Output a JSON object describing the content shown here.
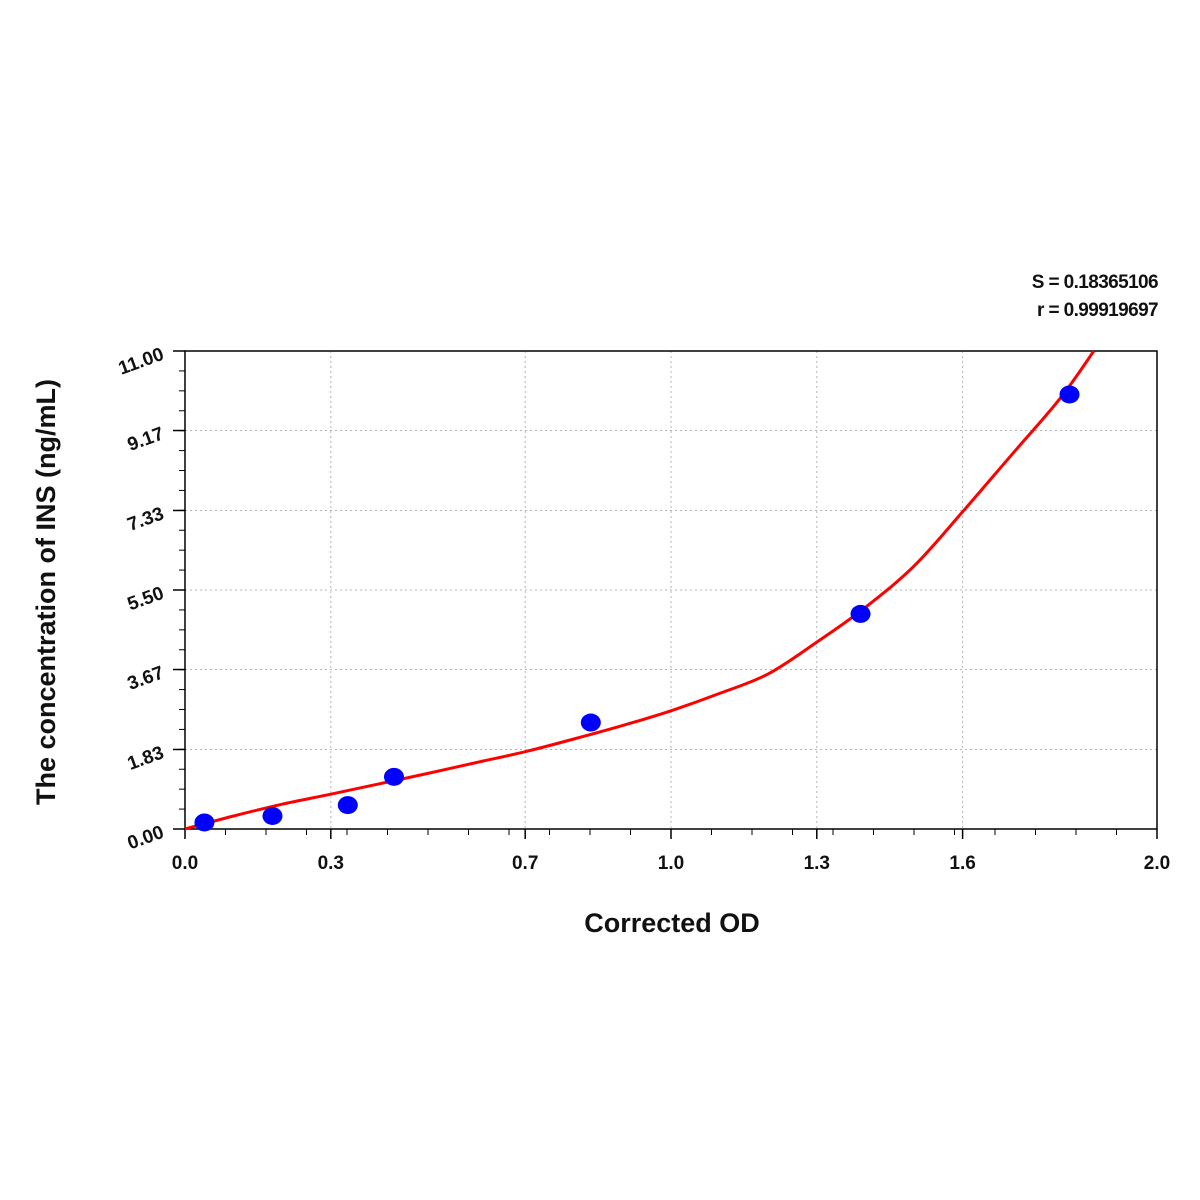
{
  "stats": {
    "s_text": "S = 0.18365106",
    "r_text": "r = 0.99919697"
  },
  "colors": {
    "curve": "#ff0000",
    "points": "#0000ff",
    "grid": "#b4b4b4",
    "axis": "#000000"
  },
  "chart_data": {
    "type": "scatter",
    "title": "",
    "xlabel": "Corrected OD",
    "ylabel": "The concentration of INS (ng/mL)",
    "xlim": [
      0,
      2.0
    ],
    "ylim": [
      0,
      11.0
    ],
    "x_ticks": [
      0.0,
      0.3,
      0.7,
      1.0,
      1.3,
      1.6,
      2.0
    ],
    "x_tick_labels": [
      "0.0",
      "0.3",
      "0.7",
      "1.0",
      "1.3",
      "1.6",
      "2.0"
    ],
    "y_ticks": [
      0.0,
      1.83,
      3.67,
      5.5,
      7.33,
      9.17,
      11.0
    ],
    "y_tick_labels": [
      "0.00",
      "1.83",
      "3.67",
      "5.50",
      "7.33",
      "9.17",
      "11.00"
    ],
    "grid": true,
    "series": [
      {
        "type": "scatter",
        "x": [
          0.04,
          0.18,
          0.335,
          0.43,
          0.835,
          1.39,
          1.82
        ],
        "y": [
          0.15,
          0.3,
          0.55,
          1.2,
          2.45,
          4.95,
          10.0
        ]
      },
      {
        "type": "line",
        "x": [
          0.0,
          0.1,
          0.2,
          0.3,
          0.4,
          0.5,
          0.6,
          0.7,
          0.8,
          0.9,
          1.0,
          1.1,
          1.2,
          1.3,
          1.4,
          1.5,
          1.6,
          1.7,
          1.8,
          1.87
        ],
        "y": [
          0.0,
          0.3,
          0.57,
          0.8,
          1.04,
          1.28,
          1.53,
          1.78,
          2.07,
          2.38,
          2.72,
          3.12,
          3.57,
          4.3,
          5.1,
          6.05,
          7.3,
          8.6,
          9.9,
          11.0
        ]
      }
    ]
  }
}
